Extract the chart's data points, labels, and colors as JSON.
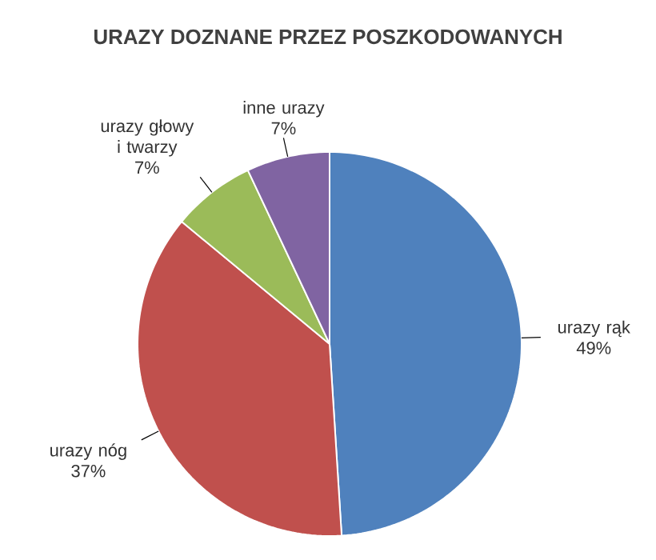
{
  "chart_data": {
    "type": "pie",
    "title": "URAZY DOZNANE PRZEZ POSZKODOWANYCH",
    "categories": [
      "urazy rąk",
      "urazy nóg",
      "urazy głowy i twarzy",
      "inne urazy"
    ],
    "values": [
      49,
      37,
      7,
      7
    ],
    "value_labels": [
      "49%",
      "37%",
      "7%",
      "7%"
    ],
    "colors": [
      "#4f81bd",
      "#c0504d",
      "#9bbb59",
      "#8064a2"
    ]
  }
}
